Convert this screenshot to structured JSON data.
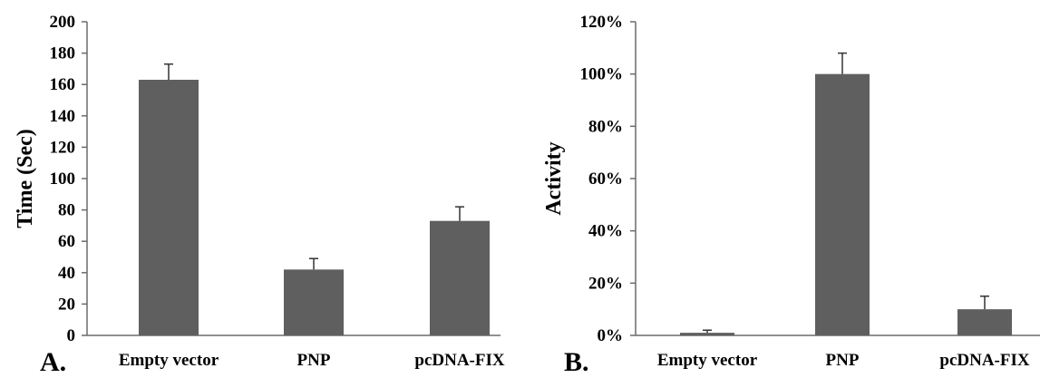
{
  "chart_data": [
    {
      "type": "bar",
      "panel_label": "A.",
      "categories": [
        "Empty vector",
        "PNP",
        "pcDNA-FIX"
      ],
      "values": [
        163,
        42,
        73
      ],
      "errors": [
        10,
        7,
        9
      ],
      "ylabel": "Time (Sec)",
      "ylim": [
        0,
        200
      ],
      "yticks": [
        0,
        20,
        40,
        60,
        80,
        100,
        120,
        140,
        160,
        180,
        200
      ],
      "ytick_labels": [
        "0",
        "20",
        "40",
        "60",
        "80",
        "100",
        "120",
        "140",
        "160",
        "180",
        "200"
      ],
      "grid": false,
      "bar_color": "#5f5f5f"
    },
    {
      "type": "bar",
      "panel_label": "B.",
      "categories": [
        "Empty vector",
        "PNP",
        "pcDNA-FIX"
      ],
      "values": [
        1,
        100,
        10
      ],
      "errors": [
        1,
        8,
        5
      ],
      "ylabel": "Activity",
      "ylim": [
        0,
        120
      ],
      "yticks": [
        0,
        20,
        40,
        60,
        80,
        100,
        120
      ],
      "ytick_labels": [
        "0%",
        "20%",
        "40%",
        "60%",
        "80%",
        "100%",
        "120%"
      ],
      "grid": false,
      "bar_color": "#5f5f5f"
    }
  ]
}
